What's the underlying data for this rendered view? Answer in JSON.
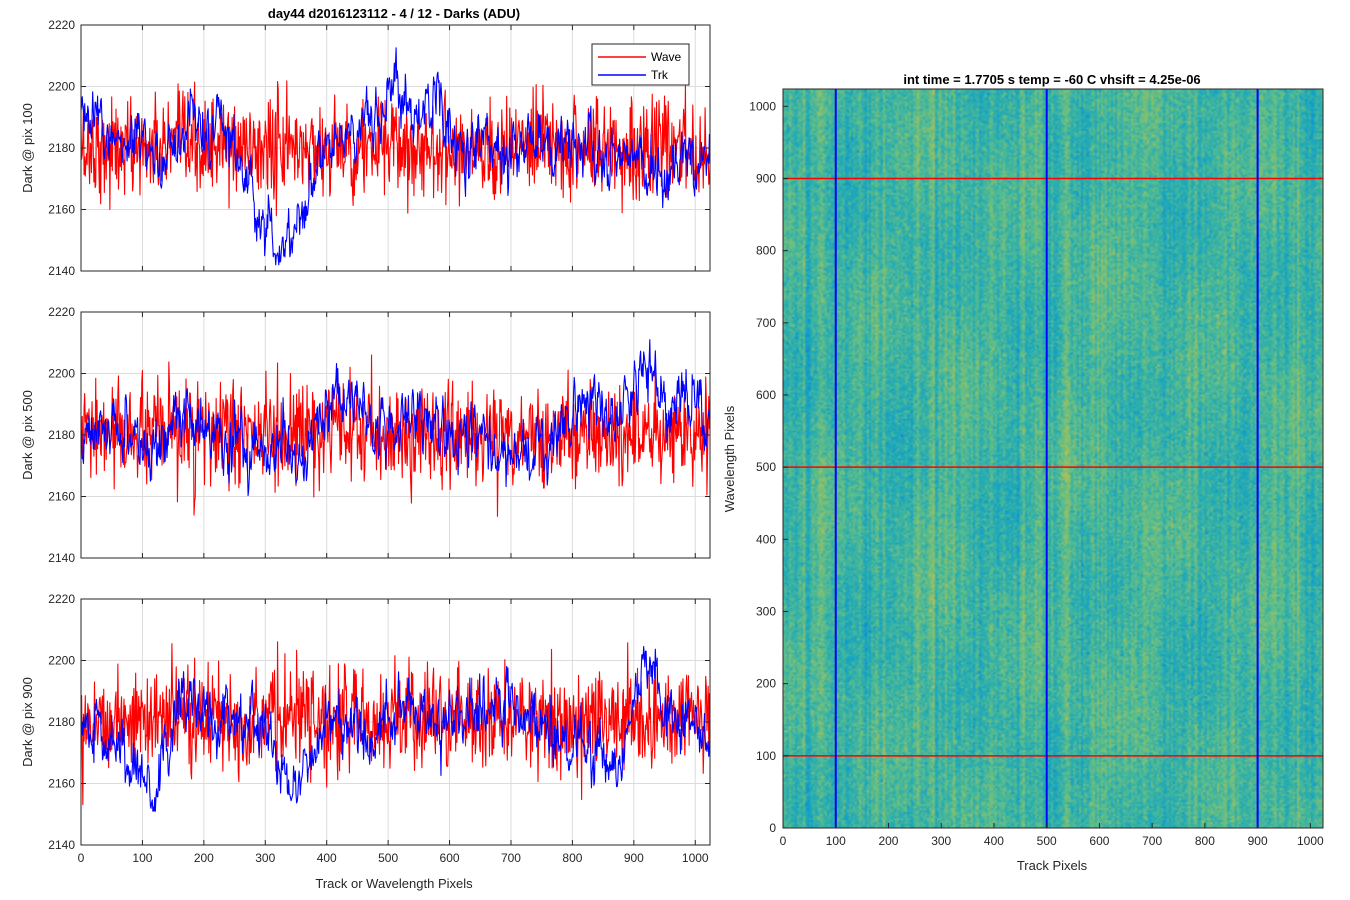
{
  "figure": {
    "suptitle": "day44 d2016123112 - 4 / 12 - Darks (ADU)",
    "bottom_xlabel": "Track or Wavelength Pixels"
  },
  "colors": {
    "wave": "#ff0000",
    "trk": "#0000ff",
    "axis": "#262626",
    "grid": "#dcdcdc"
  },
  "chart_data": [
    {
      "type": "line",
      "ylabel": "Dark @ pix 100",
      "xlim": [
        0,
        1024
      ],
      "ylim": [
        2140,
        2220
      ],
      "xticks": [
        0,
        100,
        200,
        300,
        400,
        500,
        600,
        700,
        800,
        900,
        1000
      ],
      "yticks": [
        2140,
        2160,
        2180,
        2200,
        2220
      ],
      "grid": true,
      "legend": {
        "placement": "top-right",
        "entries": [
          "Wave",
          "Trk"
        ]
      },
      "series": [
        {
          "name": "Wave",
          "color": "#ff0000",
          "mean": 2180,
          "noise_sd": 8,
          "range_observed": [
            2150,
            2210
          ]
        },
        {
          "name": "Trk",
          "color": "#0000ff",
          "trend_x": [
            0,
            30,
            60,
            120,
            180,
            230,
            260,
            300,
            330,
            360,
            400,
            450,
            490,
            515,
            540,
            580,
            620,
            660,
            700,
            760,
            820,
            860,
            900,
            940,
            980,
            1024
          ],
          "trend_y": [
            2190,
            2188,
            2182,
            2178,
            2186,
            2188,
            2172,
            2155,
            2148,
            2160,
            2180,
            2186,
            2190,
            2203,
            2190,
            2195,
            2180,
            2182,
            2180,
            2182,
            2180,
            2175,
            2182,
            2168,
            2178,
            2174
          ],
          "noise_sd": 5,
          "range_observed": [
            2142,
            2214
          ]
        }
      ]
    },
    {
      "type": "line",
      "ylabel": "Dark @ pix 500",
      "xlim": [
        0,
        1024
      ],
      "ylim": [
        2140,
        2220
      ],
      "xticks": [
        0,
        100,
        200,
        300,
        400,
        500,
        600,
        700,
        800,
        900,
        1000
      ],
      "yticks": [
        2140,
        2160,
        2180,
        2200,
        2220
      ],
      "grid": true,
      "series": [
        {
          "name": "Wave",
          "color": "#ff0000",
          "mean": 2180,
          "noise_sd": 8,
          "range_observed": [
            2144,
            2206
          ]
        },
        {
          "name": "Trk",
          "color": "#0000ff",
          "trend_x": [
            0,
            50,
            100,
            160,
            200,
            260,
            320,
            360,
            440,
            480,
            540,
            600,
            650,
            700,
            760,
            820,
            860,
            920,
            960,
            1000,
            1024
          ],
          "trend_y": [
            2178,
            2185,
            2172,
            2190,
            2180,
            2176,
            2174,
            2176,
            2196,
            2180,
            2186,
            2178,
            2182,
            2170,
            2174,
            2192,
            2184,
            2198,
            2188,
            2195,
            2180
          ],
          "noise_sd": 5,
          "range_observed": [
            2160,
            2211
          ]
        }
      ]
    },
    {
      "type": "line",
      "ylabel": "Dark @ pix 900",
      "xlim": [
        0,
        1024
      ],
      "ylim": [
        2140,
        2220
      ],
      "xticks": [
        0,
        100,
        200,
        300,
        400,
        500,
        600,
        700,
        800,
        900,
        1000
      ],
      "yticks": [
        2140,
        2160,
        2180,
        2200,
        2220
      ],
      "grid": true,
      "series": [
        {
          "name": "Wave",
          "color": "#ff0000",
          "mean": 2181,
          "noise_sd": 8,
          "range_observed": [
            2143,
            2211
          ]
        },
        {
          "name": "Trk",
          "color": "#0000ff",
          "trend_x": [
            0,
            60,
            120,
            160,
            200,
            260,
            300,
            340,
            400,
            460,
            520,
            580,
            640,
            700,
            760,
            840,
            880,
            920,
            960,
            1000,
            1024
          ],
          "trend_y": [
            2180,
            2172,
            2158,
            2190,
            2182,
            2178,
            2178,
            2158,
            2178,
            2176,
            2182,
            2178,
            2185,
            2186,
            2176,
            2170,
            2166,
            2202,
            2182,
            2180,
            2176
          ],
          "noise_sd": 5,
          "range_observed": [
            2151,
            2210
          ]
        }
      ]
    },
    {
      "type": "heatmap",
      "title": "int time = 1.7705 s    temp = -60 C    vhsift = 4.25e-06",
      "xlabel": "Track Pixels",
      "ylabel": "Wavelength Pixels",
      "xlim": [
        0,
        1024
      ],
      "ylim": [
        0,
        1024
      ],
      "xticks": [
        0,
        100,
        200,
        300,
        400,
        500,
        600,
        700,
        800,
        900,
        1000
      ],
      "yticks": [
        0,
        100,
        200,
        300,
        400,
        500,
        600,
        700,
        800,
        900,
        1000
      ],
      "colormap": "parula",
      "value_range": [
        2140,
        2220
      ],
      "vertical_markers": {
        "color": "#0000ff",
        "x": [
          100,
          500,
          900
        ]
      },
      "horizontal_markers": {
        "color": "#ff0000",
        "y": [
          100,
          500,
          900
        ]
      }
    }
  ]
}
